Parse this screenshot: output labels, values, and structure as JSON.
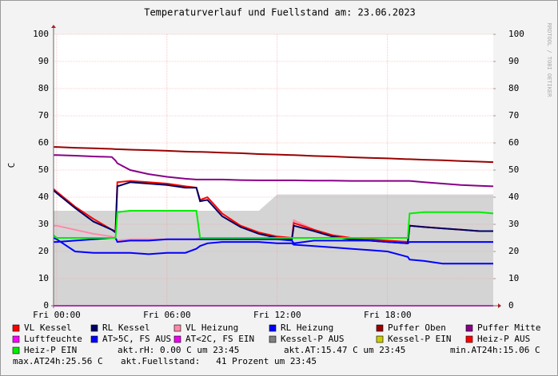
{
  "chart_data": {
    "type": "line",
    "title": "Temperaturverlauf und Fuellstand am: 23.06.2023",
    "y_label": "C",
    "watermark": "RRDTOOL / TOBI OETIKER",
    "x": [
      -0.17,
      0,
      1,
      2,
      3,
      3.2,
      3.3,
      4,
      5,
      6,
      7,
      7.6,
      7.8,
      8.2,
      9,
      10,
      11,
      12,
      12.8,
      12.9,
      14,
      15,
      16,
      17,
      18,
      19.1,
      19.2,
      20,
      21,
      22,
      23,
      23.75
    ],
    "xlim": [
      -0.17,
      23.75
    ],
    "xticks": [
      {
        "value": 0,
        "label": "Fri 00:00"
      },
      {
        "value": 6,
        "label": "Fri 06:00"
      },
      {
        "value": 12,
        "label": "Fri 12:00"
      },
      {
        "value": 18,
        "label": "Fri 18:00"
      }
    ],
    "ylim": [
      0,
      100
    ],
    "yticks": [
      0,
      10,
      20,
      30,
      40,
      50,
      60,
      70,
      80,
      90,
      100
    ],
    "y2lim": [
      0,
      100
    ],
    "y2ticks": [
      0,
      10,
      20,
      30,
      40,
      50,
      60,
      70,
      80,
      90,
      100
    ],
    "grid": true,
    "area": {
      "color": "#d4d4d4",
      "values": [
        35,
        35,
        35,
        35,
        35,
        35,
        35,
        35,
        35,
        35,
        35,
        35,
        35,
        35,
        35,
        35,
        35,
        41,
        41,
        41,
        41,
        41,
        41,
        41,
        41,
        41,
        41,
        41,
        41,
        41,
        41,
        41
      ]
    },
    "series": [
      {
        "name": "VL Kessel",
        "color": "#ff0000",
        "values": [
          43,
          42,
          36.5,
          32,
          28,
          27.5,
          45.5,
          46,
          45.5,
          45,
          44,
          43.5,
          39,
          40,
          34,
          29.5,
          27,
          25.5,
          25,
          30.5,
          28,
          26,
          25,
          24.5,
          24,
          23.5,
          29.5,
          29,
          28.5,
          28,
          27.5,
          27.5
        ]
      },
      {
        "name": "RL Kessel",
        "color": "#000066",
        "values": [
          42.5,
          41.5,
          36,
          31,
          28,
          27,
          44,
          45.5,
          45,
          44.5,
          43.5,
          43.5,
          38.5,
          39,
          33,
          29,
          26.5,
          25,
          24.5,
          29.5,
          27.5,
          25.5,
          24.5,
          24,
          23.5,
          23,
          29.5,
          29,
          28.5,
          28,
          27.5,
          27.5
        ]
      },
      {
        "name": "VL Heizung",
        "color": "#ff88aa",
        "values": [
          29.5,
          29.5,
          28,
          26.5,
          25.5,
          25,
          24,
          24.5,
          24.5,
          24.5,
          24.5,
          24.5,
          25,
          25,
          25,
          25,
          25,
          25,
          25,
          31.5,
          28,
          26,
          25,
          24.5,
          24,
          23.5,
          23.5,
          23.5,
          23.5,
          23.5,
          23.5,
          23.5
        ]
      },
      {
        "name": "RL Heizung",
        "color": "#0000ff",
        "values": [
          23.5,
          23.5,
          24,
          24.5,
          25,
          25,
          23.5,
          24,
          24,
          24.5,
          24.5,
          24.5,
          24.5,
          24.5,
          24.5,
          24.5,
          24.5,
          24.5,
          24,
          23,
          24,
          24,
          24,
          24,
          23.5,
          23,
          23.5,
          23.5,
          23.5,
          23.5,
          23.5,
          23.5
        ]
      },
      {
        "name": "Puffer Oben",
        "color": "#990000",
        "values": [
          58.5,
          58.5,
          58.2,
          58,
          57.8,
          57.7,
          57.7,
          57.5,
          57.3,
          57.1,
          56.8,
          56.7,
          56.7,
          56.6,
          56.4,
          56.2,
          55.9,
          55.7,
          55.5,
          55.5,
          55.2,
          55,
          54.7,
          54.5,
          54.3,
          54,
          54,
          53.8,
          53.6,
          53.3,
          53.1,
          52.9
        ]
      },
      {
        "name": "Puffer Mitte",
        "color": "#880088",
        "values": [
          55.5,
          55.5,
          55.3,
          55,
          54.8,
          53.5,
          52.5,
          50,
          48.5,
          47.5,
          46.8,
          46.5,
          46.5,
          46.5,
          46.5,
          46.3,
          46.2,
          46.2,
          46.2,
          46.2,
          46.1,
          46.1,
          46,
          46,
          46,
          46,
          46,
          45.5,
          45,
          44.5,
          44.2,
          44
        ]
      },
      {
        "name": "Luftfeuchte",
        "color": "#ff00ff",
        "values": [
          0,
          0,
          0,
          0,
          0,
          0,
          0,
          0,
          0,
          0,
          0,
          0,
          0,
          0,
          0,
          0,
          0,
          0,
          0,
          0,
          0,
          0,
          0,
          0,
          0,
          0,
          0,
          0,
          0,
          0,
          0,
          0
        ]
      },
      {
        "name": "AT>5C, FS AUS",
        "color": "#0000ff",
        "values": [
          25,
          24.5,
          20,
          19.5,
          19.5,
          19.5,
          19.5,
          19.5,
          19,
          19.5,
          19.5,
          21,
          22,
          23,
          23.5,
          23.5,
          23.5,
          23,
          23,
          22.5,
          22,
          21.5,
          21,
          20.5,
          20,
          18,
          17,
          16.5,
          15.5,
          15.5,
          15.5,
          15.5
        ]
      },
      {
        "name": "AT<2C, FS EIN",
        "color": "#ee00ee"
      },
      {
        "name": "Kessel-P AUS",
        "color": "#808080"
      },
      {
        "name": "Kessel-P EIN",
        "color": "#cccc00"
      },
      {
        "name": "Heiz-P AUS",
        "color": "#ff0000"
      },
      {
        "name": "Heiz-P EIN",
        "color": "#00ee00",
        "values": [
          26,
          25,
          25,
          25,
          25,
          25,
          34.5,
          35,
          35,
          35,
          35,
          35,
          25,
          25,
          25,
          25,
          25,
          25,
          25,
          25,
          25,
          25,
          25,
          25,
          25,
          25,
          34,
          34.5,
          34.5,
          34.5,
          34.5,
          34
        ]
      }
    ],
    "notes": [
      "akt.rH: 0.00 C um 23:45",
      "akt.AT:15.47 C um 23:45",
      "min.AT24h:15.06 C",
      "max.AT24h:25.56 C",
      "akt.Fuellstand:   41 Prozent um 23:45"
    ]
  }
}
